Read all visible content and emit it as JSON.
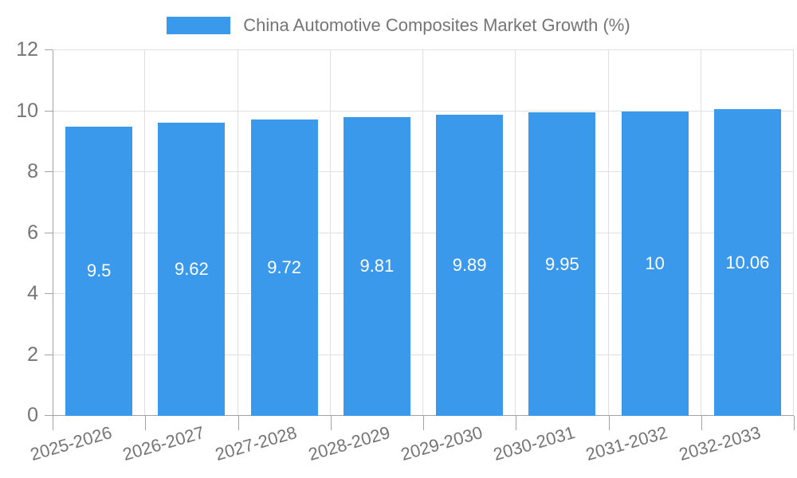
{
  "chart_data": {
    "type": "bar",
    "title": "China Automotive Composites Market Growth (%)",
    "categories": [
      "2025-2026",
      "2026-2027",
      "2027-2028",
      "2028-2029",
      "2029-2030",
      "2030-2031",
      "2031-2032",
      "2032-2033"
    ],
    "values": [
      9.5,
      9.62,
      9.72,
      9.81,
      9.89,
      9.95,
      10,
      10.06
    ],
    "value_labels": [
      "9.5",
      "9.62",
      "9.72",
      "9.81",
      "9.89",
      "9.95",
      "10",
      "10.06"
    ],
    "xlabel": "",
    "ylabel": "",
    "ylim": [
      0,
      12
    ],
    "yticks": [
      0,
      2,
      4,
      6,
      8,
      10,
      12
    ],
    "grid": true,
    "legend_position": "top",
    "colors": {
      "bar": "#3b99ec",
      "bar_label": "#ffffff",
      "grid": "#e0e0e0",
      "axis": "#a2a2a2",
      "text": "#757575",
      "background": "#ffffff"
    }
  }
}
